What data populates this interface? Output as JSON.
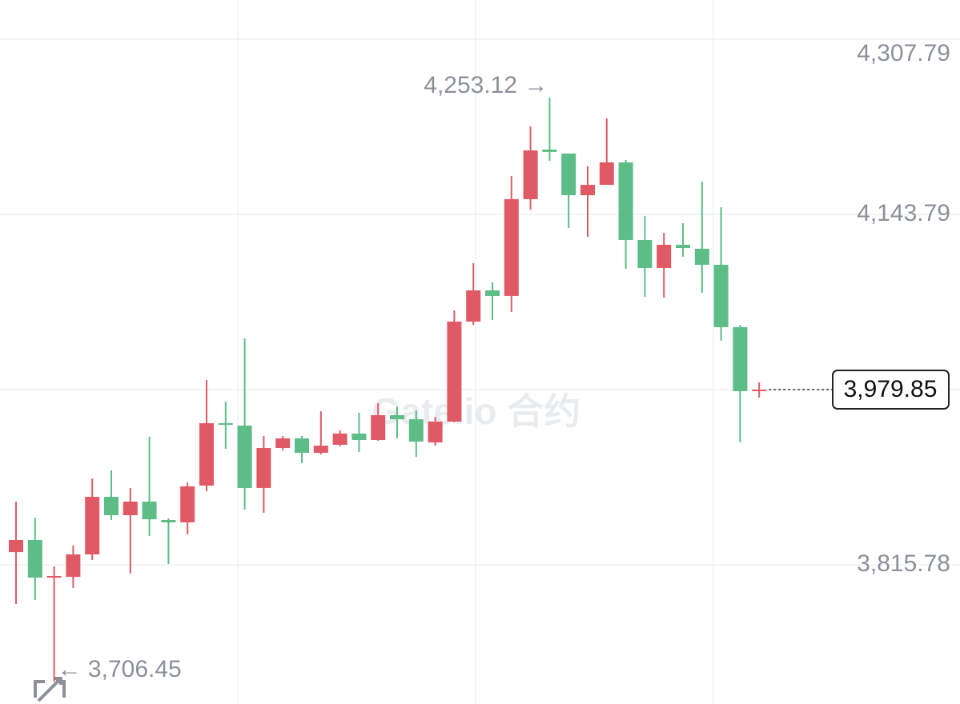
{
  "chart_data": {
    "type": "candlestick",
    "watermark": "Gate.io 合约",
    "categories": [
      null,
      null,
      null,
      null,
      null,
      null,
      null,
      null,
      null,
      null,
      null,
      null,
      null,
      null,
      null,
      null,
      null,
      null,
      null,
      null,
      null,
      null,
      null,
      null,
      null,
      null,
      null,
      null,
      null,
      null,
      null,
      null,
      null,
      null,
      null,
      null,
      null,
      null,
      null,
      null
    ],
    "open": [
      3827.8,
      3839.1,
      3803.9,
      3804.6,
      3825.6,
      3879.5,
      3862.3,
      3875.0,
      3857.8,
      3855.6,
      3890.0,
      3948.4,
      3946.2,
      3887.8,
      3925.2,
      3934.2,
      3920.7,
      3928.2,
      3938.7,
      3932.7,
      3955.9,
      3952.1,
      3930.4,
      3949.9,
      4043.5,
      4072.7,
      4067.5,
      4158.1,
      4204.5,
      4200.8,
      4161.8,
      4171.5,
      4192.5,
      4119.9,
      4093.7,
      4115.4,
      4111.7,
      4096.7,
      4038.3,
      3978.4
    ],
    "high": [
      3875.0,
      3860.0,
      3814.4,
      3833.9,
      3896.7,
      3904.2,
      3887.8,
      3935.7,
      3859.3,
      3893.0,
      3988.8,
      3968.6,
      4027.8,
      3936.4,
      3936.4,
      3936.4,
      3959.6,
      3941.7,
      3958.1,
      3967.1,
      3964.1,
      3960.4,
      3954.4,
      4054.0,
      4098.2,
      4080.2,
      4179.8,
      4226.2,
      4253.12,
      4200.8,
      4188.8,
      4233.7,
      4194.8,
      4142.3,
      4126.6,
      4135.6,
      4174.5,
      4150.6,
      4040.5,
      3986.6
    ],
    "low": [
      3779.2,
      3782.9,
      3706.45,
      3794.2,
      3820.4,
      3857.8,
      3807.6,
      3842.8,
      3816.6,
      3844.3,
      3884.8,
      3924.4,
      3867.5,
      3864.6,
      3923.0,
      3911.0,
      3919.2,
      3926.7,
      3921.4,
      3931.9,
      3934.2,
      3916.9,
      3927.4,
      3949.2,
      4040.5,
      4045.0,
      4052.5,
      4148.3,
      4194.0,
      4131.1,
      4122.9,
      4171.5,
      4092.9,
      4066.7,
      4066.0,
      4104.2,
      4070.5,
      4025.5,
      3930.4,
      3972.4
    ],
    "close": [
      3839.1,
      3803.9,
      3805.4,
      3825.6,
      3879.5,
      3862.3,
      3875.0,
      3858.5,
      3855.6,
      3889.3,
      3948.4,
      3946.9,
      3887.8,
      3925.2,
      3934.2,
      3920.7,
      3927.4,
      3938.7,
      3932.7,
      3955.9,
      3952.1,
      3931.2,
      3949.9,
      4043.5,
      4072.7,
      4067.5,
      4158.1,
      4203.7,
      4202.3,
      4161.8,
      4171.5,
      4192.5,
      4119.9,
      4093.7,
      4115.4,
      4112.4,
      4096.7,
      4038.3,
      3978.4,
      3979.85
    ],
    "up_color": "#e05a66",
    "down_color": "#5cbd86",
    "ylim": [
      3685.6,
      4344.5
    ],
    "yticks": [
      {
        "value": 4307.79,
        "label": "4,307.79"
      },
      {
        "value": 4143.79,
        "label": "4,143.79"
      },
      {
        "value": 3979.85,
        "label": "3,979.85"
      },
      {
        "value": 3815.78,
        "label": "3,815.78"
      }
    ],
    "grid": true,
    "last_price": {
      "value": 3979.85,
      "label": "3,979.85"
    },
    "annotations": [
      {
        "value": 4253.12,
        "label": "4,253.12 →"
      },
      {
        "value": 3706.45,
        "label": "← 3,706.45"
      }
    ]
  }
}
